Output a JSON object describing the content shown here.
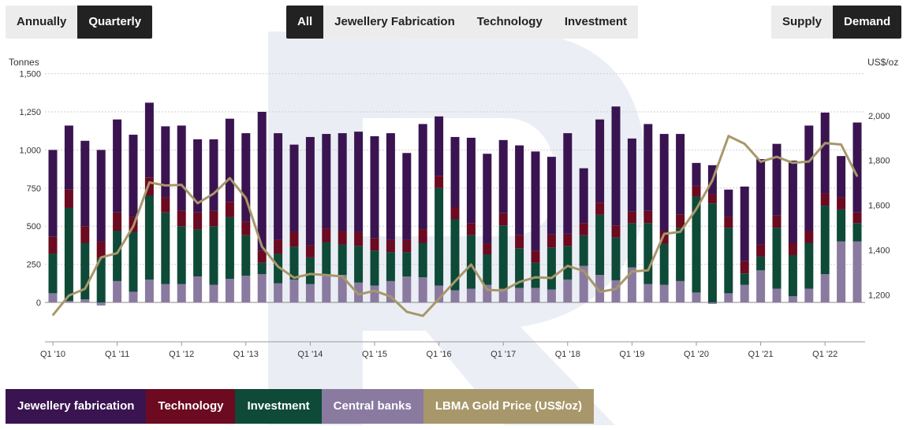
{
  "toggles": {
    "period": [
      "Annually",
      "Quarterly"
    ],
    "period_active": 1,
    "sector": [
      "All",
      "Jewellery Fabrication",
      "Technology",
      "Investment"
    ],
    "sector_active": 0,
    "side": [
      "Supply",
      "Demand"
    ],
    "side_active": 1
  },
  "colors": {
    "jewellery": "#3a1450",
    "technology": "#6b0a20",
    "investment": "#0e4a37",
    "central_banks": "#8a7aa0",
    "gold_price": "#a8976a"
  },
  "legend": [
    {
      "key": "jewellery",
      "label": "Jewellery fabrication"
    },
    {
      "key": "technology",
      "label": "Technology"
    },
    {
      "key": "investment",
      "label": "Investment"
    },
    {
      "key": "central_banks",
      "label": "Central banks"
    },
    {
      "key": "gold_price",
      "label": "LBMA Gold Price (US$/oz)"
    }
  ],
  "chart_data": {
    "type": "bar",
    "stacked": true,
    "ylabel": "Tonnes",
    "y2label": "US$/oz",
    "ylim": [
      -250,
      1500
    ],
    "y2lim": [
      1100,
      2000
    ],
    "yticks": [
      0,
      250,
      500,
      750,
      "1,000",
      "1,250",
      "1,500"
    ],
    "y2ticks": [
      "1,200",
      "1,400",
      "1,600",
      "1,800",
      "2,000"
    ],
    "xtick_labels": [
      "Q1 '10",
      "Q1 '11",
      "Q1 '12",
      "Q1 '13",
      "Q1 '14",
      "Q1 '15",
      "Q1 '16",
      "Q1 '17",
      "Q1 '18",
      "Q1 '19",
      "Q1 '20",
      "Q1 '21",
      "Q1 '22"
    ],
    "categories": [
      "Q1 '10",
      "Q2 '10",
      "Q3 '10",
      "Q4 '10",
      "Q1 '11",
      "Q2 '11",
      "Q3 '11",
      "Q4 '11",
      "Q1 '12",
      "Q2 '12",
      "Q3 '12",
      "Q4 '12",
      "Q1 '13",
      "Q2 '13",
      "Q3 '13",
      "Q4 '13",
      "Q1 '14",
      "Q2 '14",
      "Q3 '14",
      "Q4 '14",
      "Q1 '15",
      "Q2 '15",
      "Q3 '15",
      "Q4 '15",
      "Q1 '16",
      "Q2 '16",
      "Q3 '16",
      "Q4 '16",
      "Q1 '17",
      "Q2 '17",
      "Q3 '17",
      "Q4 '17",
      "Q1 '18",
      "Q2 '18",
      "Q3 '18",
      "Q4 '18",
      "Q1 '19",
      "Q2 '19",
      "Q3 '19",
      "Q4 '19",
      "Q1 '20",
      "Q2 '20",
      "Q3 '20",
      "Q4 '20",
      "Q1 '21",
      "Q2 '21",
      "Q3 '21",
      "Q4 '21",
      "Q1 '22",
      "Q2 '22",
      "Q3 '22"
    ],
    "series": [
      {
        "name": "Central banks",
        "key": "central_banks",
        "values": [
          60,
          10,
          20,
          -20,
          140,
          70,
          150,
          120,
          120,
          170,
          115,
          155,
          175,
          185,
          125,
          150,
          120,
          175,
          180,
          130,
          110,
          140,
          170,
          165,
          110,
          80,
          90,
          115,
          90,
          95,
          95,
          85,
          150,
          240,
          180,
          145,
          230,
          120,
          115,
          140,
          65,
          -10,
          60,
          115,
          210,
          90,
          40,
          90,
          185,
          400,
          400
        ]
      },
      {
        "name": "Investment",
        "key": "investment",
        "values": [
          260,
          610,
          370,
          290,
          330,
          390,
          550,
          470,
          380,
          310,
          385,
          405,
          265,
          75,
          195,
          215,
          175,
          220,
          200,
          240,
          230,
          190,
          160,
          225,
          640,
          465,
          350,
          200,
          415,
          260,
          165,
          275,
          220,
          200,
          395,
          280,
          290,
          400,
          270,
          350,
          630,
          650,
          430,
          75,
          90,
          400,
          270,
          300,
          450,
          210,
          120
        ]
      },
      {
        "name": "Technology",
        "key": "technology",
        "values": [
          110,
          120,
          110,
          110,
          120,
          100,
          120,
          100,
          100,
          110,
          100,
          100,
          90,
          80,
          90,
          100,
          80,
          90,
          90,
          90,
          80,
          80,
          80,
          90,
          80,
          80,
          80,
          70,
          80,
          85,
          80,
          85,
          80,
          80,
          80,
          80,
          75,
          80,
          80,
          85,
          70,
          60,
          70,
          80,
          80,
          80,
          80,
          80,
          80,
          80,
          70
        ]
      },
      {
        "name": "Jewellery fabrication",
        "key": "jewellery",
        "values": [
          570,
          420,
          560,
          600,
          610,
          540,
          490,
          465,
          560,
          480,
          470,
          545,
          580,
          910,
          700,
          570,
          710,
          620,
          640,
          660,
          670,
          700,
          570,
          690,
          390,
          460,
          560,
          590,
          480,
          590,
          650,
          510,
          660,
          360,
          545,
          780,
          480,
          570,
          640,
          530,
          150,
          190,
          180,
          490,
          560,
          470,
          540,
          690,
          530,
          270,
          590
        ]
      },
      {
        "name": "LBMA Gold Price (US$/oz)",
        "key": "gold_price",
        "axis": "right",
        "values": [
          1109,
          1197,
          1227,
          1367,
          1386,
          1506,
          1702,
          1688,
          1691,
          1609,
          1652,
          1721,
          1632,
          1415,
          1326,
          1276,
          1293,
          1288,
          1282,
          1201,
          1218,
          1192,
          1124,
          1106,
          1182,
          1260,
          1335,
          1222,
          1219,
          1257,
          1278,
          1275,
          1329,
          1306,
          1213,
          1226,
          1304,
          1309,
          1472,
          1481,
          1583,
          1711,
          1909,
          1874,
          1794,
          1816,
          1789,
          1795,
          1877,
          1871,
          1729
        ]
      }
    ]
  }
}
